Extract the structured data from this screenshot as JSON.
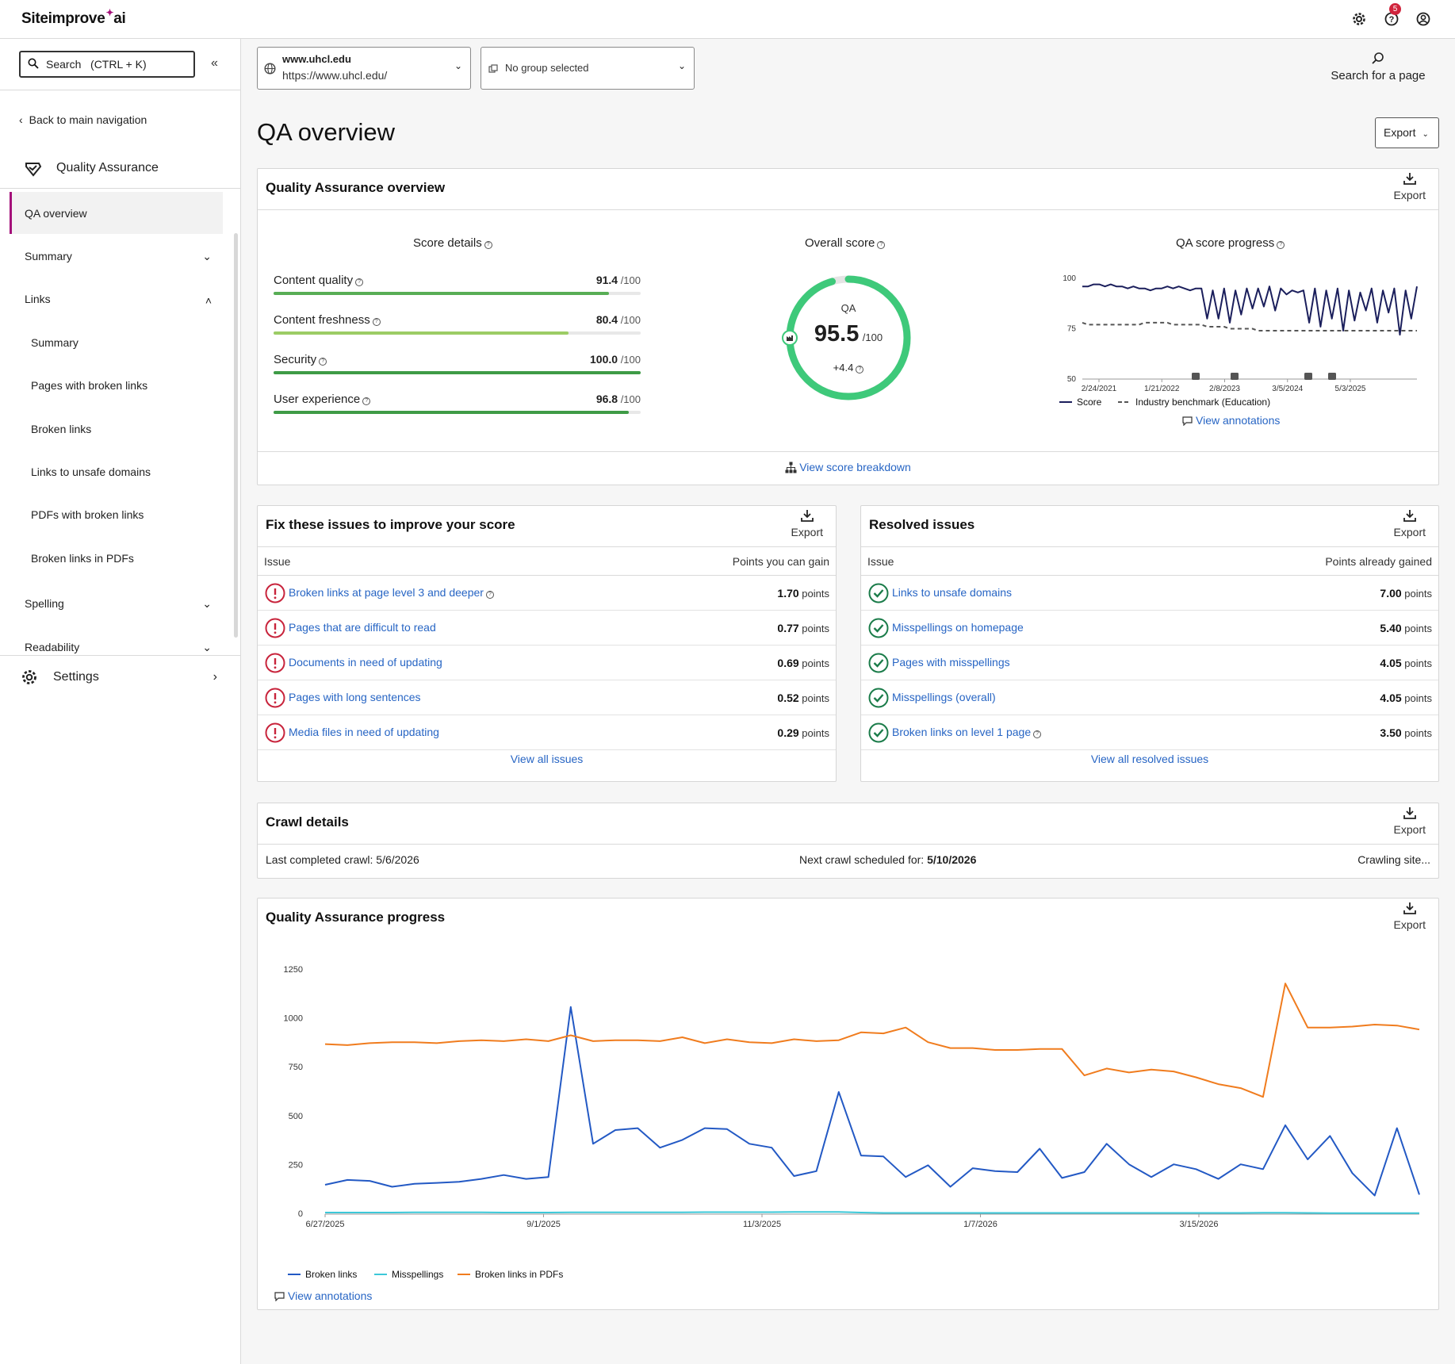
{
  "brand": {
    "name": "Siteimprove",
    "suffix": "ai",
    "accent": "#a4117a"
  },
  "topbar": {
    "notification_count": "5"
  },
  "sidebar": {
    "search_label": "Search   (CTRL + K)",
    "back_label": "Back to main navigation",
    "section_title": "Quality Assurance",
    "active_item": "QA overview",
    "items": [
      {
        "label": "Summary",
        "expanded": false
      },
      {
        "label": "Links",
        "expanded": true
      },
      {
        "label": "Spelling",
        "expanded": false
      },
      {
        "label": "Readability",
        "expanded": false
      }
    ],
    "link_subitems": [
      "Summary",
      "Pages with broken links",
      "Broken links",
      "Links to unsafe domains",
      "PDFs with broken links",
      "Broken links in PDFs"
    ],
    "settings_label": "Settings"
  },
  "site_selector": {
    "name": "www.uhcl.edu",
    "url": "https://www.uhcl.edu/"
  },
  "group_selector": {
    "label": "No group selected"
  },
  "search_page": {
    "label": "Search for a page"
  },
  "page": {
    "title": "QA overview",
    "export_label": "Export"
  },
  "overview": {
    "title": "Quality Assurance overview",
    "export_label": "Export",
    "score_details": {
      "title": "Score details",
      "rows": [
        {
          "label": "Content quality",
          "value": "91.4",
          "max": "/100",
          "fill": 0.914,
          "color": "#58ad55"
        },
        {
          "label": "Content freshness",
          "value": "80.4",
          "max": "/100",
          "fill": 0.804,
          "color": "#9ccc65"
        },
        {
          "label": "Security",
          "value": "100.0",
          "max": "/100",
          "fill": 1.0,
          "color": "#3e9b46"
        },
        {
          "label": "User experience",
          "value": "96.8",
          "max": "/100",
          "fill": 0.968,
          "color": "#3e9b46"
        }
      ]
    },
    "overall": {
      "title": "Overall score",
      "label": "QA",
      "value": "95.5",
      "max": "/100",
      "change": "+4.4",
      "fill": 0.955,
      "color": "#3ec97a"
    },
    "progress": {
      "title": "QA score progress",
      "legend_score": "Score",
      "legend_benchmark": "Industry benchmark (Education)",
      "annotations_link": "View annotations"
    },
    "breakdown_link": "View score breakdown"
  },
  "fix_issues": {
    "title": "Fix these issues to improve your score",
    "export_label": "Export",
    "col_issue": "Issue",
    "col_points": "Points you can gain",
    "rows": [
      {
        "issue": "Broken links at page level 3 and deeper",
        "points": "1.70",
        "unit": "points",
        "info": true
      },
      {
        "issue": "Pages that are difficult to read",
        "points": "0.77",
        "unit": "points",
        "info": false
      },
      {
        "issue": "Documents in need of updating",
        "points": "0.69",
        "unit": "points",
        "info": false
      },
      {
        "issue": "Pages with long sentences",
        "points": "0.52",
        "unit": "points",
        "info": false
      },
      {
        "issue": "Media files in need of updating",
        "points": "0.29",
        "unit": "points",
        "info": false
      }
    ],
    "view_all": "View all issues"
  },
  "resolved": {
    "title": "Resolved issues",
    "export_label": "Export",
    "col_issue": "Issue",
    "col_points": "Points already gained",
    "rows": [
      {
        "issue": "Links to unsafe domains",
        "points": "7.00",
        "unit": "points",
        "info": false
      },
      {
        "issue": "Misspellings on homepage",
        "points": "5.40",
        "unit": "points",
        "info": false
      },
      {
        "issue": "Pages with misspellings",
        "points": "4.05",
        "unit": "points",
        "info": false
      },
      {
        "issue": "Misspellings (overall)",
        "points": "4.05",
        "unit": "points",
        "info": false
      },
      {
        "issue": "Broken links on level 1 page",
        "points": "3.50",
        "unit": "points",
        "info": true
      }
    ],
    "view_all": "View all resolved issues"
  },
  "crawl": {
    "title": "Crawl details",
    "export_label": "Export",
    "last_label": "Last completed crawl:",
    "last_value": "5/6/2026",
    "next_label": "Next crawl scheduled for:",
    "next_value": "5/10/2026",
    "status": "Crawling site..."
  },
  "progress_card": {
    "title": "Quality Assurance progress",
    "export_label": "Export",
    "annotations_link": "View annotations"
  },
  "chart_data": [
    {
      "type": "line",
      "title": "QA score progress",
      "x_ticks": [
        "2/24/2021",
        "1/21/2022",
        "2/8/2023",
        "3/5/2024",
        "5/3/2025"
      ],
      "ylim": [
        50,
        100
      ],
      "y_ticks": [
        50,
        75,
        100
      ],
      "series": [
        {
          "name": "Score",
          "color": "#1b1f5c",
          "values": [
            96,
            96,
            97,
            97,
            96,
            97,
            96,
            96,
            95,
            96,
            95,
            95,
            94,
            95,
            95,
            96,
            95,
            96,
            95,
            94,
            95,
            95,
            80,
            94,
            80,
            95,
            78,
            94,
            82,
            95,
            85,
            95,
            86,
            96,
            84,
            95,
            92,
            94,
            93,
            94,
            78,
            95,
            76,
            94,
            80,
            95,
            74,
            94,
            79,
            93,
            84,
            95,
            78,
            94,
            83,
            95,
            72,
            94,
            80,
            96
          ]
        },
        {
          "name": "Industry benchmark (Education)",
          "color": "#555555",
          "dashed": true,
          "values": [
            78,
            77,
            77,
            77,
            77,
            77,
            77,
            77,
            77,
            77,
            77,
            78,
            78,
            78,
            78,
            78,
            77,
            77,
            77,
            77,
            77,
            77,
            76,
            76,
            76,
            76,
            75,
            75,
            75,
            75,
            75,
            74,
            74,
            74,
            74,
            74,
            74,
            74,
            74,
            74,
            74,
            74,
            74,
            74,
            74,
            74,
            74,
            74,
            74,
            74,
            74,
            74,
            74,
            74,
            74,
            74,
            74,
            74,
            74,
            74
          ]
        }
      ],
      "annotation_markers": 4
    },
    {
      "type": "line",
      "title": "Quality Assurance progress",
      "x_ticks": [
        "6/27/2025",
        "9/1/2025",
        "11/3/2025",
        "1/7/2026",
        "3/15/2026"
      ],
      "ylim": [
        0,
        1250
      ],
      "y_ticks": [
        0,
        250,
        500,
        750,
        1000,
        1250
      ],
      "series": [
        {
          "name": "Broken links",
          "color": "#2359c4",
          "values": [
            150,
            175,
            170,
            140,
            155,
            160,
            165,
            180,
            200,
            180,
            190,
            1060,
            360,
            430,
            440,
            340,
            380,
            440,
            435,
            360,
            340,
            195,
            220,
            625,
            300,
            295,
            190,
            250,
            140,
            235,
            220,
            215,
            335,
            185,
            215,
            360,
            255,
            190,
            255,
            230,
            180,
            255,
            230,
            455,
            280,
            400,
            210,
            95,
            440,
            100
          ]
        },
        {
          "name": "Misspellings",
          "color": "#3cc8d8",
          "values": [
            8,
            8,
            8,
            8,
            9,
            9,
            9,
            9,
            8,
            8,
            8,
            9,
            9,
            9,
            9,
            9,
            9,
            10,
            10,
            10,
            10,
            11,
            11,
            11,
            8,
            6,
            6,
            6,
            6,
            6,
            6,
            6,
            6,
            6,
            6,
            6,
            6,
            6,
            6,
            6,
            6,
            6,
            7,
            7,
            6,
            5,
            5,
            5,
            5,
            5
          ]
        },
        {
          "name": "Broken links in PDFs",
          "color": "#f07c1e",
          "values": [
            870,
            865,
            875,
            880,
            880,
            875,
            885,
            890,
            885,
            895,
            885,
            915,
            885,
            890,
            890,
            885,
            905,
            875,
            895,
            880,
            875,
            895,
            885,
            890,
            930,
            925,
            955,
            880,
            850,
            850,
            840,
            840,
            845,
            845,
            710,
            745,
            725,
            740,
            730,
            700,
            665,
            645,
            600,
            1180,
            955,
            955,
            960,
            970,
            965,
            945
          ]
        }
      ]
    }
  ]
}
